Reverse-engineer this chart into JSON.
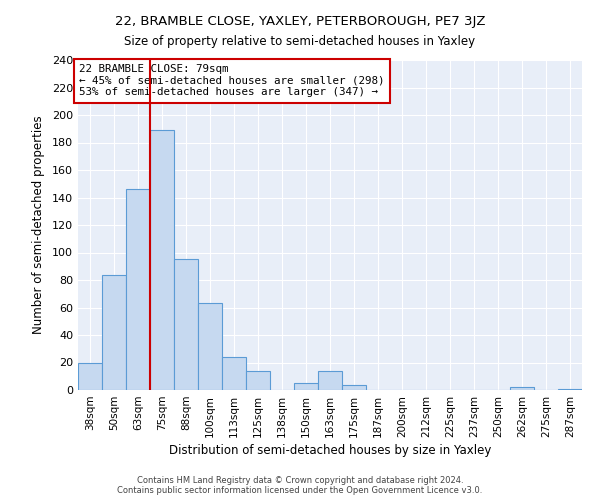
{
  "title1": "22, BRAMBLE CLOSE, YAXLEY, PETERBOROUGH, PE7 3JZ",
  "title2": "Size of property relative to semi-detached houses in Yaxley",
  "xlabel": "Distribution of semi-detached houses by size in Yaxley",
  "ylabel": "Number of semi-detached properties",
  "bin_labels": [
    "38sqm",
    "50sqm",
    "63sqm",
    "75sqm",
    "88sqm",
    "100sqm",
    "113sqm",
    "125sqm",
    "138sqm",
    "150sqm",
    "163sqm",
    "175sqm",
    "187sqm",
    "200sqm",
    "212sqm",
    "225sqm",
    "237sqm",
    "250sqm",
    "262sqm",
    "275sqm",
    "287sqm"
  ],
  "bar_values": [
    20,
    84,
    146,
    189,
    95,
    63,
    24,
    14,
    0,
    5,
    14,
    4,
    0,
    0,
    0,
    0,
    0,
    0,
    2,
    0,
    1
  ],
  "bar_color": "#c6d9f0",
  "bar_edge_color": "#5b9bd5",
  "marker_bin_index": 3,
  "marker_label": "22 BRAMBLE CLOSE: 79sqm",
  "pct_smaller": "45% of semi-detached houses are smaller (298)",
  "pct_larger": "53% of semi-detached houses are larger (347)",
  "marker_line_color": "#cc0000",
  "box_edge_color": "#cc0000",
  "ylim": [
    0,
    240
  ],
  "yticks": [
    0,
    20,
    40,
    60,
    80,
    100,
    120,
    140,
    160,
    180,
    200,
    220,
    240
  ],
  "footer1": "Contains HM Land Registry data © Crown copyright and database right 2024.",
  "footer2": "Contains public sector information licensed under the Open Government Licence v3.0.",
  "bg_color": "#e8eef8"
}
